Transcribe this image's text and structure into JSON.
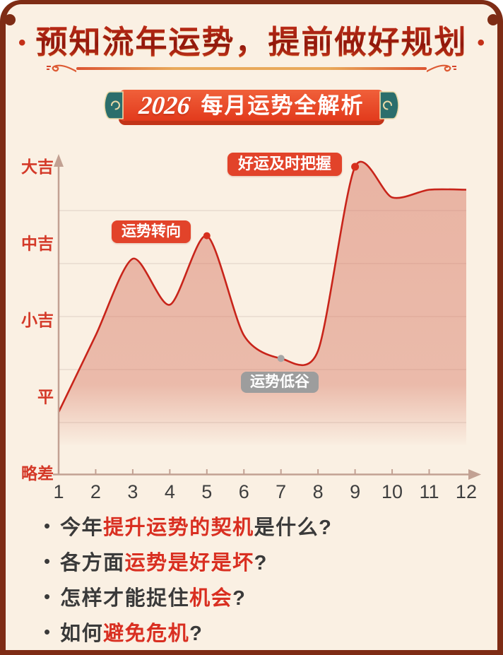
{
  "header": {
    "left_dot": "•",
    "right_dot": "•",
    "title": "预知流年运势，提前做好规划",
    "badge": {
      "year": "2026",
      "label": "每月运势全解析"
    }
  },
  "chart_data": {
    "type": "area",
    "title": "2026 每月运势全解析",
    "x": [
      1,
      2,
      3,
      4,
      5,
      6,
      7,
      8,
      9,
      10,
      11,
      12
    ],
    "values": [
      1.8,
      2.8,
      3.8,
      3.2,
      4.1,
      2.8,
      2.5,
      2.6,
      5.0,
      4.6,
      4.7,
      4.7
    ],
    "xlabel": "",
    "ylabel": "",
    "ylim": [
      0.8,
      5.3
    ],
    "y_ticks": [
      "大吉",
      "中吉",
      "小吉",
      "平",
      "略差"
    ],
    "value_scale": {
      "5": "大吉",
      "4": "中吉",
      "3": "小吉",
      "2": "平",
      "1": "略差"
    },
    "grid": true,
    "legend": false,
    "annotations": [
      {
        "month": 5,
        "label": "运势转向",
        "style": "red"
      },
      {
        "month": 7,
        "label": "运势低谷",
        "style": "gray"
      },
      {
        "month": 9,
        "label": "好运及时把握",
        "style": "red"
      }
    ],
    "colors": {
      "line": "#C8241A",
      "fill": "#D97C68",
      "axis": "#C2A193",
      "grid_line": "#DECFC4",
      "y_label": "#D43928",
      "x_label": "#3F3F3F",
      "dot_red": "#D6301E",
      "dot_gray": "#A6A6A6"
    }
  },
  "bullets": [
    [
      {
        "t": "今年",
        "red": false
      },
      {
        "t": "提升运势的契机",
        "red": true
      },
      {
        "t": "是什么?",
        "red": false
      }
    ],
    [
      {
        "t": "各方面",
        "red": false
      },
      {
        "t": "运势是好是坏",
        "red": true
      },
      {
        "t": "?",
        "red": false
      }
    ],
    [
      {
        "t": "怎样才能捉住",
        "red": false
      },
      {
        "t": "机会",
        "red": true
      },
      {
        "t": "?",
        "red": false
      }
    ],
    [
      {
        "t": "如何",
        "red": false
      },
      {
        "t": "避免危机",
        "red": true
      },
      {
        "t": "?",
        "red": false
      }
    ]
  ],
  "theme": {
    "background": "#FAF0E3",
    "frame": "#7E2C15",
    "accent_red": "#E2432A",
    "badge_gradient_top": "#F0603A",
    "badge_gradient_bottom": "#E23A1C"
  }
}
